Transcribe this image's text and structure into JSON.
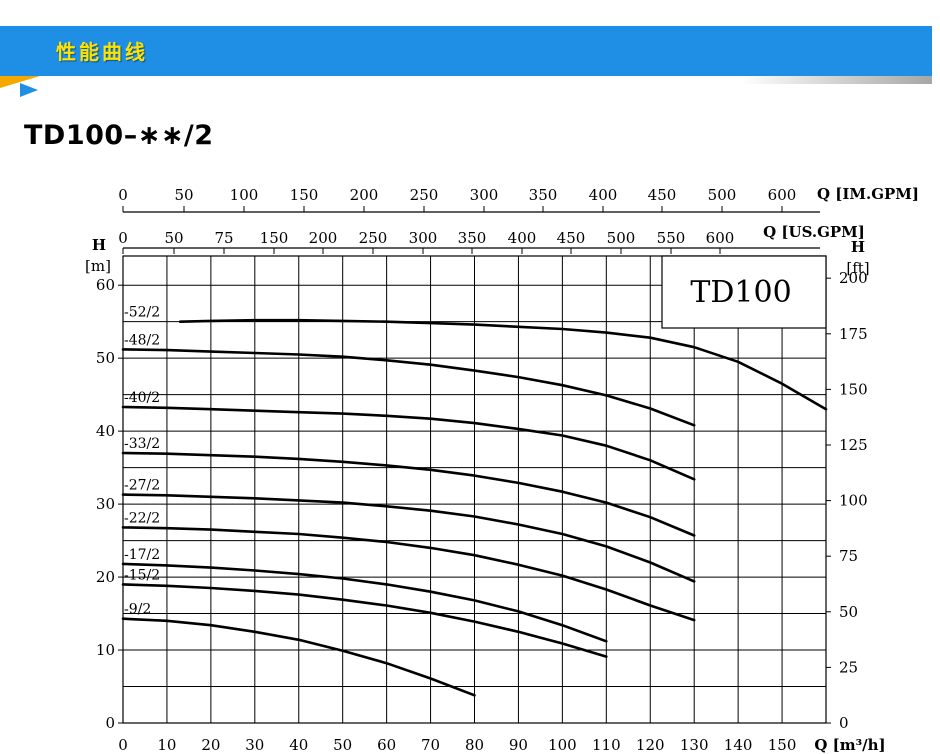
{
  "banner": {
    "title": "性能曲线"
  },
  "page": {
    "model_heading": "TD100–∗∗/2"
  },
  "chart_data": {
    "type": "line",
    "inset_label": "TD100",
    "x_axis": {
      "label": "Q [m³/h]",
      "range": [
        0,
        160
      ],
      "ticks": [
        0,
        10,
        20,
        30,
        40,
        50,
        60,
        70,
        80,
        90,
        100,
        110,
        120,
        130,
        140,
        150
      ]
    },
    "y_axis_left": {
      "label": "H",
      "unit": "[m]",
      "range": [
        0,
        64
      ],
      "ticks": [
        0,
        10,
        20,
        30,
        40,
        50,
        60
      ]
    },
    "y_axis_right": {
      "label": "H",
      "unit": "[ft]",
      "range": [
        0,
        210
      ],
      "ticks": [
        0,
        25,
        50,
        75,
        100,
        125,
        150,
        175,
        200
      ]
    },
    "top_axis_im": {
      "label": "Q [IM.GPM]",
      "ticks": [
        "0",
        "50",
        "100",
        "150",
        "200",
        "250",
        "300",
        "350",
        "400",
        "450",
        "500",
        "600"
      ]
    },
    "top_axis_us": {
      "label": "Q [US.GPM]",
      "ticks": [
        "0",
        "50",
        "75",
        "150",
        "200",
        "250",
        "300",
        "350",
        "400",
        "450",
        "500",
        "550",
        "600"
      ]
    },
    "grid": true,
    "series": [
      {
        "name": "-52/2",
        "x": [
          13,
          20,
          30,
          40,
          50,
          60,
          70,
          80,
          90,
          100,
          110,
          120,
          130,
          140,
          150,
          160
        ],
        "y": [
          55,
          55.1,
          55.2,
          55.2,
          55.1,
          55,
          54.8,
          54.6,
          54.3,
          54,
          53.5,
          52.8,
          51.5,
          49.5,
          46.5,
          43
        ]
      },
      {
        "name": "-48/2",
        "x": [
          0,
          10,
          20,
          30,
          40,
          50,
          60,
          70,
          80,
          90,
          100,
          110,
          120,
          130
        ],
        "y": [
          51.2,
          51.1,
          50.9,
          50.7,
          50.5,
          50.2,
          49.7,
          49.1,
          48.3,
          47.4,
          46.3,
          44.9,
          43.1,
          40.8
        ]
      },
      {
        "name": "-40/2",
        "x": [
          0,
          10,
          20,
          30,
          40,
          50,
          60,
          70,
          80,
          90,
          100,
          110,
          120,
          130
        ],
        "y": [
          43.3,
          43.2,
          43,
          42.8,
          42.6,
          42.4,
          42.1,
          41.7,
          41.1,
          40.3,
          39.4,
          38,
          36,
          33.4
        ]
      },
      {
        "name": "-33/2",
        "x": [
          0,
          10,
          20,
          30,
          40,
          50,
          60,
          70,
          80,
          90,
          100,
          110,
          120,
          130
        ],
        "y": [
          37,
          36.9,
          36.7,
          36.5,
          36.2,
          35.8,
          35.3,
          34.7,
          33.9,
          32.9,
          31.7,
          30.2,
          28.2,
          25.7
        ]
      },
      {
        "name": "-27/2",
        "x": [
          0,
          10,
          20,
          30,
          40,
          50,
          60,
          70,
          80,
          90,
          100,
          110,
          120,
          130
        ],
        "y": [
          31.3,
          31.2,
          31,
          30.8,
          30.5,
          30.2,
          29.7,
          29.1,
          28.3,
          27.2,
          25.9,
          24.2,
          22,
          19.4
        ]
      },
      {
        "name": "-22/2",
        "x": [
          0,
          10,
          20,
          30,
          40,
          50,
          60,
          70,
          80,
          90,
          100,
          110,
          120,
          130
        ],
        "y": [
          26.8,
          26.7,
          26.5,
          26.2,
          25.9,
          25.4,
          24.8,
          24,
          23,
          21.7,
          20.2,
          18.3,
          16.1,
          14.1
        ]
      },
      {
        "name": "-17/2",
        "x": [
          0,
          10,
          20,
          30,
          40,
          50,
          60,
          70,
          80,
          90,
          100,
          110
        ],
        "y": [
          21.8,
          21.6,
          21.3,
          20.9,
          20.4,
          19.8,
          19,
          18,
          16.8,
          15.3,
          13.4,
          11.2
        ]
      },
      {
        "name": "-15/2",
        "x": [
          0,
          10,
          20,
          30,
          40,
          50,
          60,
          70,
          80,
          90,
          100,
          110
        ],
        "y": [
          19,
          18.8,
          18.5,
          18.1,
          17.6,
          16.9,
          16.1,
          15.1,
          13.9,
          12.5,
          10.9,
          9.1
        ]
      },
      {
        "name": "-9/2",
        "x": [
          0,
          10,
          20,
          30,
          40,
          50,
          60,
          70,
          80
        ],
        "y": [
          14.3,
          14,
          13.4,
          12.5,
          11.4,
          9.9,
          8.2,
          6.1,
          3.8
        ]
      }
    ]
  }
}
